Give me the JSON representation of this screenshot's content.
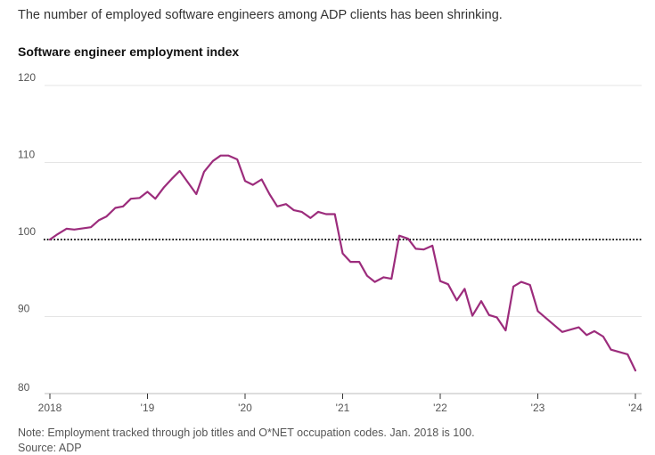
{
  "headline": "The number of employed software engineers among ADP clients has been shrinking.",
  "note": "Note: Employment tracked through job titles and O*NET occupation codes. Jan. 2018 is 100.",
  "source": "Source: ADP",
  "colors": {
    "line": "#9c2c7c",
    "grid": "#e5e5e5",
    "reference": "#111111",
    "axis": "#bbbbbb"
  },
  "chart_data": {
    "type": "line",
    "title": "Software engineer employment index",
    "xlabel": "",
    "ylabel": "",
    "ylim": [
      80,
      120
    ],
    "yticks": [
      80,
      90,
      100,
      110,
      120
    ],
    "xlim": [
      2018.0,
      2024.0
    ],
    "xticks": [
      {
        "value": 2018,
        "label": "2018"
      },
      {
        "value": 2019,
        "label": "'19"
      },
      {
        "value": 2020,
        "label": "'20"
      },
      {
        "value": 2021,
        "label": "'21"
      },
      {
        "value": 2022,
        "label": "'22"
      },
      {
        "value": 2023,
        "label": "'23"
      },
      {
        "value": 2024,
        "label": "'24"
      }
    ],
    "reference_line": {
      "value": 100,
      "style": "dotted"
    },
    "grid": true,
    "series": [
      {
        "x": [
          2018.0,
          2018.08,
          2018.17,
          2018.25,
          2018.42,
          2018.5,
          2018.58,
          2018.67,
          2018.75,
          2018.83,
          2018.92,
          2019.0,
          2019.08,
          2019.17,
          2019.25,
          2019.33,
          2019.5,
          2019.58,
          2019.67,
          2019.75,
          2019.83,
          2019.92,
          2020.0,
          2020.08,
          2020.17,
          2020.25,
          2020.33,
          2020.42,
          2020.5,
          2020.58,
          2020.67,
          2020.75,
          2020.83,
          2020.92,
          2021.0,
          2021.08,
          2021.17,
          2021.25,
          2021.33,
          2021.42,
          2021.5,
          2021.58,
          2021.67,
          2021.75,
          2021.83,
          2021.92,
          2022.0,
          2022.08,
          2022.17,
          2022.25,
          2022.33,
          2022.42,
          2022.5,
          2022.58,
          2022.67,
          2022.75,
          2022.83,
          2022.92,
          2023.0,
          2023.25,
          2023.42,
          2023.5,
          2023.58,
          2023.67,
          2023.75,
          2023.92,
          2024.0
        ],
        "values": [
          100.0,
          100.7,
          101.4,
          101.3,
          101.6,
          102.5,
          103.0,
          104.1,
          104.3,
          105.3,
          105.4,
          106.2,
          105.3,
          106.8,
          107.9,
          108.9,
          105.9,
          108.8,
          110.2,
          110.9,
          110.9,
          110.4,
          107.6,
          107.1,
          107.8,
          105.9,
          104.3,
          104.6,
          103.8,
          103.6,
          102.8,
          103.6,
          103.3,
          103.3,
          98.2,
          97.1,
          97.1,
          95.3,
          94.5,
          95.1,
          94.9,
          100.5,
          100.1,
          98.8,
          98.7,
          99.2,
          94.6,
          94.2,
          92.1,
          93.6,
          90.1,
          92.0,
          90.2,
          89.9,
          88.2,
          93.9,
          94.5,
          94.1,
          90.7,
          88.0,
          88.6,
          87.6,
          88.1,
          87.4,
          85.7,
          85.1,
          83.0
        ]
      }
    ]
  }
}
